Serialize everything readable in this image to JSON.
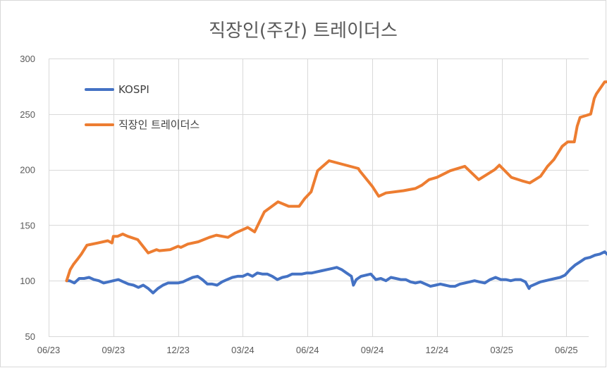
{
  "chart_data": {
    "type": "line",
    "title": "직장인(주간) 트레이더스",
    "xlabel": "",
    "ylabel": "",
    "ylim": [
      50,
      300
    ],
    "yticks": [
      50,
      100,
      150,
      200,
      250,
      300
    ],
    "grid": true,
    "legend_position": "upper-left",
    "x_tick_labels": [
      "06/23",
      "09/23",
      "12/23",
      "03/24",
      "06/24",
      "09/24",
      "12/24",
      "03/25",
      "06/25"
    ],
    "x_range": [
      "2023-06",
      "2025-08"
    ],
    "series": [
      {
        "name": "KOSPI",
        "color": "#4472c4",
        "x": [
          "2023-06-26",
          "2023-06-30",
          "2023-07-07",
          "2023-07-14",
          "2023-07-21",
          "2023-07-28",
          "2023-08-04",
          "2023-08-11",
          "2023-08-18",
          "2023-08-25",
          "2023-09-01",
          "2023-09-08",
          "2023-09-15",
          "2023-09-22",
          "2023-09-29",
          "2023-10-06",
          "2023-10-13",
          "2023-10-20",
          "2023-10-27",
          "2023-11-03",
          "2023-11-10",
          "2023-11-17",
          "2023-11-24",
          "2023-12-01",
          "2023-12-08",
          "2023-12-15",
          "2023-12-22",
          "2023-12-29",
          "2024-01-05",
          "2024-01-12",
          "2024-01-19",
          "2024-01-26",
          "2024-02-02",
          "2024-02-09",
          "2024-02-16",
          "2024-02-23",
          "2024-03-01",
          "2024-03-08",
          "2024-03-15",
          "2024-03-22",
          "2024-03-29",
          "2024-04-05",
          "2024-04-12",
          "2024-04-19",
          "2024-04-26",
          "2024-05-03",
          "2024-05-10",
          "2024-05-17",
          "2024-05-24",
          "2024-05-31",
          "2024-06-07",
          "2024-06-14",
          "2024-06-21",
          "2024-06-28",
          "2024-07-05",
          "2024-07-12",
          "2024-07-19",
          "2024-07-26",
          "2024-08-02",
          "2024-08-05",
          "2024-08-09",
          "2024-08-16",
          "2024-08-23",
          "2024-08-30",
          "2024-09-06",
          "2024-09-13",
          "2024-09-20",
          "2024-09-27",
          "2024-10-04",
          "2024-10-11",
          "2024-10-18",
          "2024-10-25",
          "2024-11-01",
          "2024-11-08",
          "2024-11-15",
          "2024-11-22",
          "2024-11-29",
          "2024-12-06",
          "2024-12-13",
          "2024-12-20",
          "2024-12-27",
          "2025-01-03",
          "2025-01-10",
          "2025-01-17",
          "2025-01-24",
          "2025-01-31",
          "2025-02-07",
          "2025-02-14",
          "2025-02-21",
          "2025-02-28",
          "2025-03-07",
          "2025-03-14",
          "2025-03-21",
          "2025-03-28",
          "2025-04-04",
          "2025-04-09",
          "2025-04-11",
          "2025-04-18",
          "2025-04-25",
          "2025-05-02",
          "2025-05-09",
          "2025-05-16",
          "2025-05-23",
          "2025-05-30",
          "2025-06-06",
          "2025-06-13",
          "2025-06-20",
          "2025-06-27",
          "2025-07-04",
          "2025-07-11",
          "2025-07-18",
          "2025-07-25",
          "2025-08-01"
        ],
        "values": [
          100,
          100,
          98,
          102,
          102,
          103,
          101,
          100,
          98,
          99,
          100,
          101,
          99,
          97,
          96,
          94,
          96,
          93,
          89,
          93,
          96,
          98,
          98,
          98,
          99,
          101,
          103,
          104,
          101,
          97,
          97,
          96,
          99,
          101,
          103,
          104,
          104,
          106,
          104,
          107,
          106,
          106,
          104,
          101,
          103,
          104,
          106,
          106,
          106,
          107,
          107,
          108,
          109,
          110,
          111,
          112,
          110,
          107,
          104,
          96,
          101,
          104,
          105,
          106,
          101,
          102,
          100,
          103,
          102,
          101,
          101,
          99,
          98,
          99,
          97,
          95,
          96,
          97,
          96,
          95,
          95,
          97,
          98,
          99,
          100,
          99,
          98,
          101,
          103,
          101,
          101,
          100,
          101,
          101,
          99,
          93,
          95,
          97,
          99,
          100,
          101,
          102,
          103,
          105,
          110,
          114,
          117,
          120,
          121,
          123,
          124,
          126,
          122
        ]
      },
      {
        "name": "직장인 트레이더스",
        "color": "#ed7d31",
        "x": [
          "2023-06-26",
          "2023-07-01",
          "2023-07-06",
          "2023-07-11",
          "2023-07-17",
          "2023-07-25",
          "2023-08-10",
          "2023-08-24",
          "2023-08-30",
          "2023-09-01",
          "2023-09-07",
          "2023-09-14",
          "2023-09-21",
          "2023-10-05",
          "2023-10-20",
          "2023-11-01",
          "2023-11-05",
          "2023-11-20",
          "2023-12-01",
          "2023-12-05",
          "2023-12-15",
          "2023-12-30",
          "2024-01-15",
          "2024-01-25",
          "2024-02-10",
          "2024-02-20",
          "2024-03-05",
          "2024-03-08",
          "2024-03-18",
          "2024-03-28",
          "2024-04-01",
          "2024-04-20",
          "2024-05-01",
          "2024-05-05",
          "2024-05-20",
          "2024-05-28",
          "2024-06-06",
          "2024-06-15",
          "2024-07-01",
          "2024-08-12",
          "2024-08-14",
          "2024-09-01",
          "2024-09-10",
          "2024-09-20",
          "2024-10-15",
          "2024-11-01",
          "2024-11-10",
          "2024-11-20",
          "2024-12-01",
          "2024-12-20",
          "2025-01-10",
          "2025-01-30",
          "2025-02-20",
          "2025-02-26",
          "2025-03-15",
          "2025-03-30",
          "2025-04-10",
          "2025-04-25",
          "2025-05-05",
          "2025-05-14",
          "2025-05-26",
          "2025-06-03",
          "2025-06-12",
          "2025-06-16",
          "2025-06-20",
          "2025-07-05",
          "2025-07-10",
          "2025-07-13",
          "2025-07-25",
          "2025-08-01"
        ],
        "values": [
          100,
          110,
          115,
          119,
          124,
          132,
          134,
          136,
          134,
          140,
          140,
          142,
          140,
          137,
          125,
          128,
          127,
          128,
          131,
          130,
          133,
          135,
          139,
          141,
          139,
          143,
          147,
          148,
          144,
          157,
          162,
          171,
          168,
          167,
          167,
          174,
          180,
          199,
          208,
          201,
          199,
          185,
          176,
          179,
          181,
          183,
          186,
          191,
          193,
          199,
          203,
          191,
          200,
          204,
          193,
          190,
          188,
          194,
          203,
          209,
          221,
          225,
          225,
          239,
          247,
          250,
          264,
          268,
          279,
          279
        ]
      }
    ]
  }
}
